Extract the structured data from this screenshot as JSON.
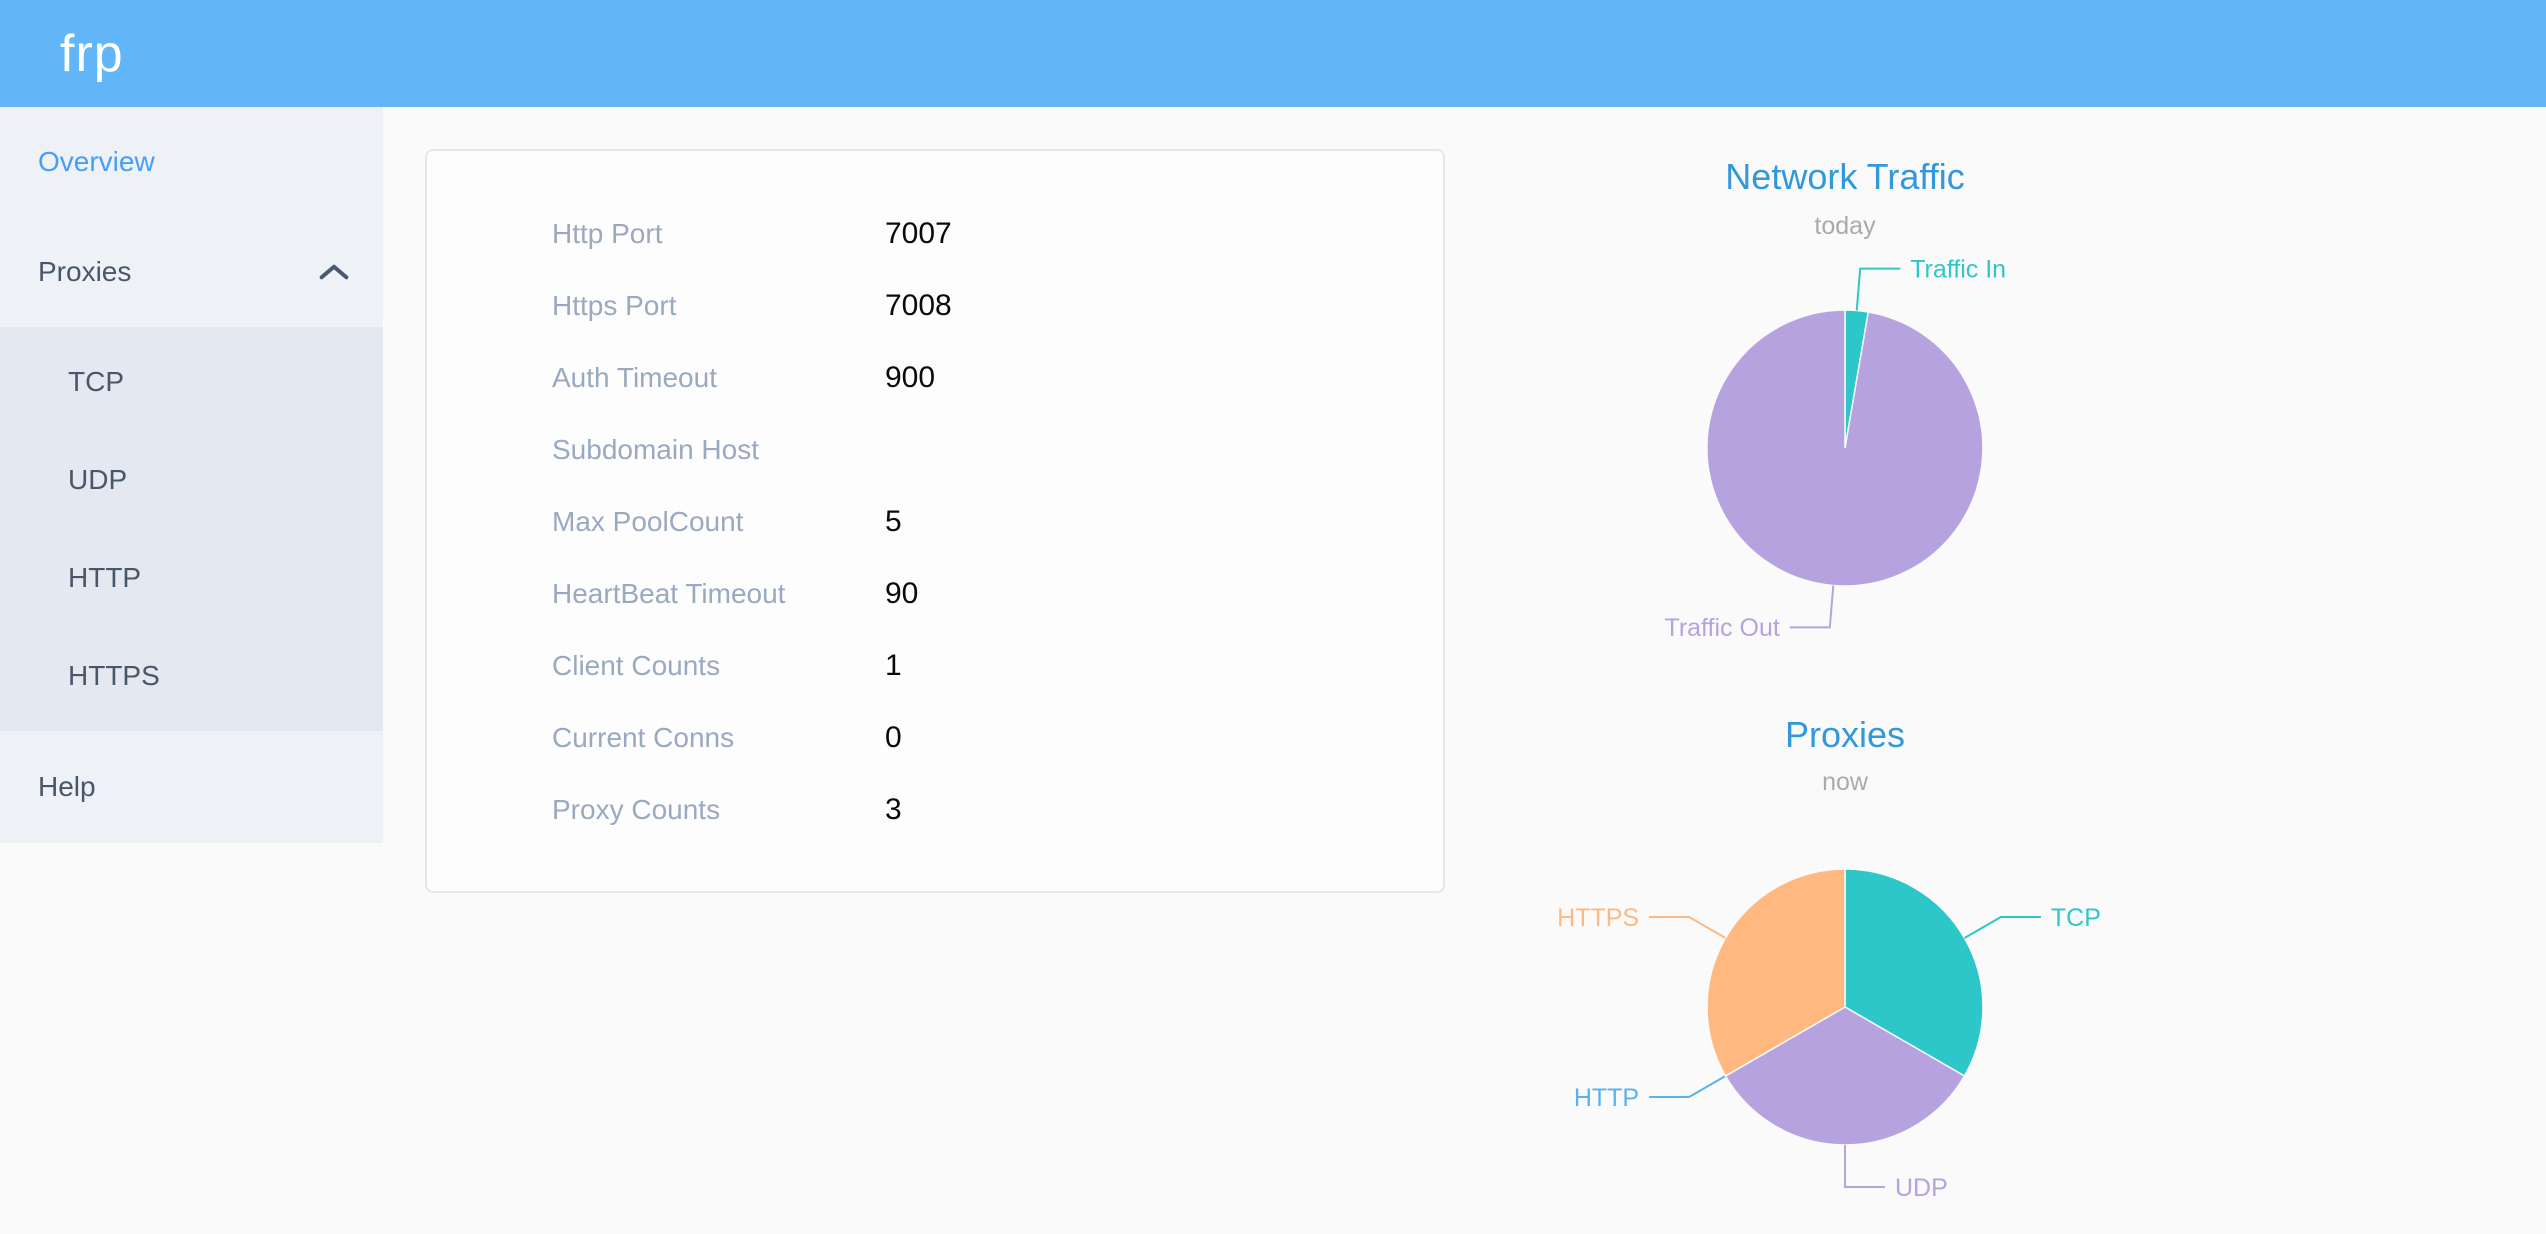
{
  "header": {
    "logo": "frp"
  },
  "sidebar": {
    "items": [
      {
        "label": "Overview",
        "active": true
      },
      {
        "label": "Proxies",
        "expanded": true
      },
      {
        "label": "TCP"
      },
      {
        "label": "UDP"
      },
      {
        "label": "HTTP"
      },
      {
        "label": "HTTPS"
      },
      {
        "label": "Help"
      }
    ]
  },
  "overview_card": {
    "rows": [
      {
        "label": "Http Port",
        "value": "7007"
      },
      {
        "label": "Https Port",
        "value": "7008"
      },
      {
        "label": "Auth Timeout",
        "value": "900"
      },
      {
        "label": "Subdomain Host",
        "value": ""
      },
      {
        "label": "Max PoolCount",
        "value": "5"
      },
      {
        "label": "HeartBeat Timeout",
        "value": "90"
      },
      {
        "label": "Client Counts",
        "value": "1"
      },
      {
        "label": "Current Conns",
        "value": "0"
      },
      {
        "label": "Proxy Counts",
        "value": "3"
      }
    ]
  },
  "chart_data": [
    {
      "type": "pie",
      "title": "Network Traffic",
      "subtitle": "today",
      "legend_position": "none",
      "labels": "outside-leader-lines",
      "series": [
        {
          "name": "Traffic In",
          "value": 2.7,
          "color": "#2ec7c9"
        },
        {
          "name": "Traffic Out",
          "value": 97.3,
          "color": "#b6a2de"
        }
      ]
    },
    {
      "type": "pie",
      "title": "Proxies",
      "subtitle": "now",
      "legend_position": "none",
      "labels": "outside-leader-lines",
      "series": [
        {
          "name": "TCP",
          "value": 1,
          "color": "#2ec7c9"
        },
        {
          "name": "UDP",
          "value": 1,
          "color": "#b6a2de"
        },
        {
          "name": "HTTP",
          "value": 0,
          "color": "#5ab1ef"
        },
        {
          "name": "HTTPS",
          "value": 1,
          "color": "#ffb980"
        }
      ]
    }
  ],
  "colors": {
    "header_bg": "#62b6f7",
    "logo_color": "#ffffff",
    "page_bg": "#fafafb",
    "sidebar_bg": "#eef1f6",
    "submenu_bg": "#e4e8f1",
    "menu_text": "#48576a",
    "accent": "#459ff7",
    "card_bg": "#fdfdfe",
    "card_border": "#e3e8f0",
    "label_text": "#99a9bf",
    "value_text": "#0a0a0a",
    "title_blue": "#3398db",
    "subtitle_gray": "#aaaaaa"
  }
}
